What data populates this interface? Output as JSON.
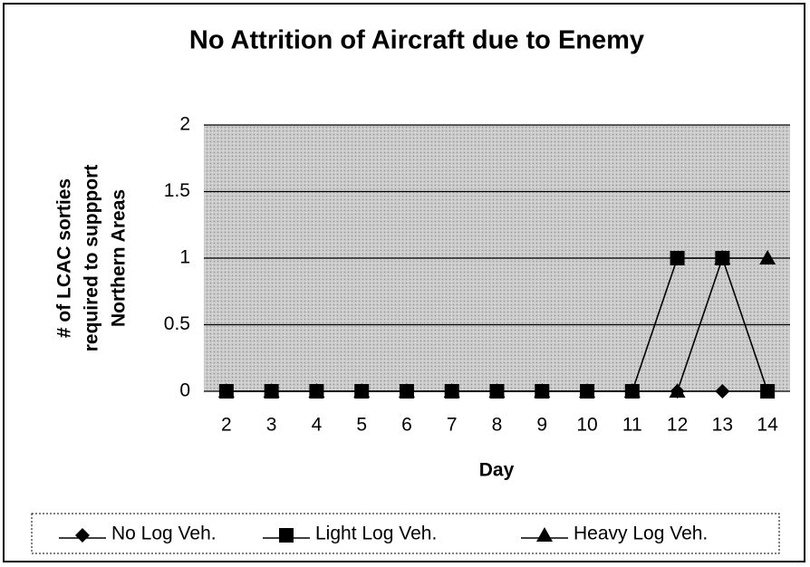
{
  "chart_data": {
    "type": "line",
    "title": "No Attrition of Aircraft due to Enemy",
    "xlabel": "Day",
    "ylabel": [
      "# of LCAC sorties",
      "required to suppport",
      "Northern Areas"
    ],
    "categories": [
      "2",
      "3",
      "4",
      "5",
      "6",
      "7",
      "8",
      "9",
      "10",
      "11",
      "12",
      "13",
      "14"
    ],
    "series": [
      {
        "name": "No Log Veh.",
        "color": "#000000",
        "marker": "diamond",
        "values": [
          0,
          0,
          0,
          0,
          0,
          0,
          0,
          0,
          0,
          0,
          0,
          0,
          0
        ]
      },
      {
        "name": "Light Log Veh.",
        "color": "#000000",
        "marker": "square",
        "values": [
          0,
          0,
          0,
          0,
          0,
          0,
          0,
          0,
          0,
          0,
          1,
          1,
          0
        ]
      },
      {
        "name": "Heavy Log Veh.",
        "color": "#000000",
        "marker": "triangle",
        "values": [
          0,
          0,
          0,
          0,
          0,
          0,
          0,
          0,
          0,
          0,
          0,
          1,
          1
        ]
      }
    ],
    "ylim": [
      0,
      2
    ],
    "yticks": [
      0,
      0.5,
      1,
      1.5,
      2
    ],
    "grid": true,
    "legend": "bottom"
  }
}
